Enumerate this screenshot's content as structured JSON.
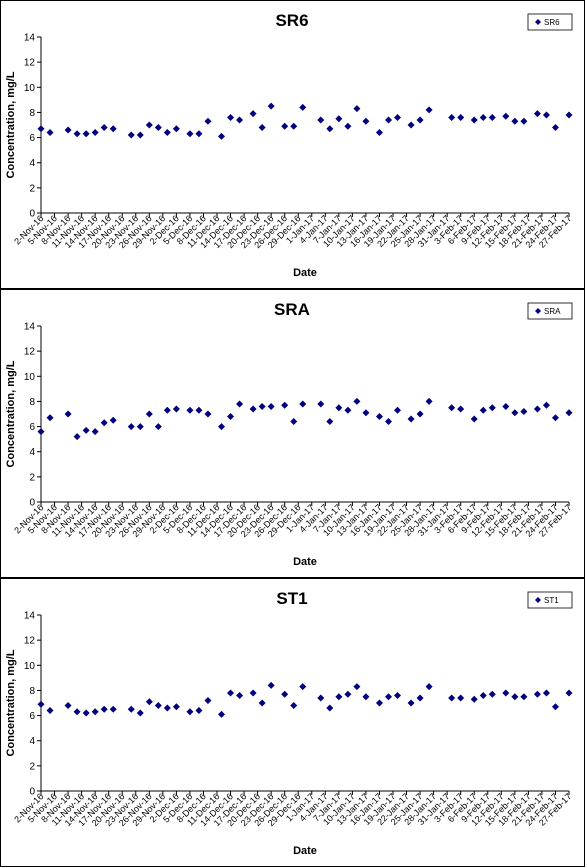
{
  "chart_data": [
    {
      "type": "scatter",
      "title": "SR6",
      "xlabel": "Date",
      "ylabel": "Concentration, mg/L",
      "legend": "upper right",
      "x": [
        "2-Nov-16",
        "4-Nov-16",
        "8-Nov-16",
        "10-Nov-16",
        "12-Nov-16",
        "14-Nov-16",
        "16-Nov-16",
        "18-Nov-16",
        "22-Nov-16",
        "24-Nov-16",
        "26-Nov-16",
        "28-Nov-16",
        "30-Nov-16",
        "2-Dec-16",
        "5-Dec-16",
        "7-Dec-16",
        "9-Dec-16",
        "12-Dec-16",
        "14-Dec-16",
        "16-Dec-16",
        "19-Dec-16",
        "21-Dec-16",
        "23-Dec-16",
        "26-Dec-16",
        "28-Dec-16",
        "30-Dec-16",
        "3-Jan-17",
        "5-Jan-17",
        "7-Jan-17",
        "9-Jan-17",
        "11-Jan-17",
        "13-Jan-17",
        "16-Jan-17",
        "18-Jan-17",
        "20-Jan-17",
        "23-Jan-17",
        "25-Jan-17",
        "27-Jan-17",
        "1-Feb-17",
        "3-Feb-17",
        "6-Feb-17",
        "8-Feb-17",
        "10-Feb-17",
        "13-Feb-17",
        "15-Feb-17",
        "17-Feb-17",
        "20-Feb-17",
        "22-Feb-17",
        "24-Feb-17",
        "27-Feb-17"
      ],
      "series": [
        {
          "name": "SR6",
          "color": "#000080",
          "values": [
            6.7,
            6.4,
            6.6,
            6.3,
            6.3,
            6.4,
            6.8,
            6.7,
            6.2,
            6.2,
            7.0,
            6.8,
            6.4,
            6.7,
            6.3,
            6.3,
            7.3,
            6.1,
            7.6,
            7.4,
            7.9,
            6.8,
            8.5,
            6.9,
            6.9,
            8.4,
            7.4,
            6.7,
            7.5,
            6.9,
            8.3,
            7.3,
            6.4,
            7.4,
            7.6,
            7.0,
            7.4,
            8.2,
            7.6,
            7.6,
            7.4,
            7.6,
            7.6,
            7.7,
            7.3,
            7.3,
            7.9,
            7.8,
            6.8,
            7.8
          ]
        }
      ],
      "xlim": [
        "2-Nov-16",
        "27-Feb-17"
      ],
      "xticks": [
        "2-Nov-16",
        "5-Nov-16",
        "8-Nov-16",
        "11-Nov-16",
        "14-Nov-16",
        "17-Nov-16",
        "20-Nov-16",
        "23-Nov-16",
        "26-Nov-16",
        "29-Nov-16",
        "2-Dec-16",
        "5-Dec-16",
        "8-Dec-16",
        "11-Dec-16",
        "14-Dec-16",
        "17-Dec-16",
        "20-Dec-16",
        "23-Dec-16",
        "26-Dec-16",
        "29-Dec-16",
        "1-Jan-17",
        "4-Jan-17",
        "7-Jan-17",
        "10-Jan-17",
        "13-Jan-17",
        "16-Jan-17",
        "19-Jan-17",
        "22-Jan-17",
        "25-Jan-17",
        "28-Jan-17",
        "31-Jan-17",
        "3-Feb-17",
        "6-Feb-17",
        "9-Feb-17",
        "12-Feb-17",
        "15-Feb-17",
        "18-Feb-17",
        "21-Feb-17",
        "24-Feb-17",
        "27-Feb-17"
      ],
      "ylim": [
        0,
        14
      ],
      "yticks": [
        0,
        2,
        4,
        6,
        8,
        10,
        12,
        14
      ]
    },
    {
      "type": "scatter",
      "title": "SRA",
      "xlabel": "Date",
      "ylabel": "Concentration, mg/L",
      "legend": "upper right",
      "x": [
        "2-Nov-16",
        "4-Nov-16",
        "8-Nov-16",
        "10-Nov-16",
        "12-Nov-16",
        "14-Nov-16",
        "16-Nov-16",
        "18-Nov-16",
        "22-Nov-16",
        "24-Nov-16",
        "26-Nov-16",
        "28-Nov-16",
        "30-Nov-16",
        "2-Dec-16",
        "5-Dec-16",
        "7-Dec-16",
        "9-Dec-16",
        "12-Dec-16",
        "14-Dec-16",
        "16-Dec-16",
        "19-Dec-16",
        "21-Dec-16",
        "23-Dec-16",
        "26-Dec-16",
        "28-Dec-16",
        "30-Dec-16",
        "3-Jan-17",
        "5-Jan-17",
        "7-Jan-17",
        "9-Jan-17",
        "11-Jan-17",
        "13-Jan-17",
        "16-Jan-17",
        "18-Jan-17",
        "20-Jan-17",
        "23-Jan-17",
        "25-Jan-17",
        "27-Jan-17",
        "1-Feb-17",
        "3-Feb-17",
        "6-Feb-17",
        "8-Feb-17",
        "10-Feb-17",
        "13-Feb-17",
        "15-Feb-17",
        "17-Feb-17",
        "20-Feb-17",
        "22-Feb-17",
        "24-Feb-17",
        "27-Feb-17"
      ],
      "series": [
        {
          "name": "SRA",
          "color": "#000080",
          "values": [
            5.6,
            6.7,
            7.0,
            5.2,
            5.7,
            5.6,
            6.3,
            6.5,
            6.0,
            6.0,
            7.0,
            6.0,
            7.3,
            7.4,
            7.3,
            7.3,
            7.0,
            6.0,
            6.8,
            7.8,
            7.4,
            7.6,
            7.6,
            7.7,
            6.4,
            7.8,
            7.8,
            6.4,
            7.5,
            7.3,
            8.0,
            7.1,
            6.8,
            6.4,
            7.3,
            6.6,
            7.0,
            8.0,
            7.5,
            7.4,
            6.6,
            7.3,
            7.5,
            7.6,
            7.1,
            7.2,
            7.4,
            7.7,
            6.7,
            7.1
          ]
        }
      ],
      "xlim": [
        "2-Nov-16",
        "27-Feb-17"
      ],
      "xticks": [
        "2-Nov-16",
        "5-Nov-16",
        "8-Nov-16",
        "11-Nov-16",
        "14-Nov-16",
        "17-Nov-16",
        "20-Nov-16",
        "23-Nov-16",
        "26-Nov-16",
        "29-Nov-16",
        "2-Dec-16",
        "5-Dec-16",
        "8-Dec-16",
        "11-Dec-16",
        "14-Dec-16",
        "17-Dec-16",
        "20-Dec-16",
        "23-Dec-16",
        "26-Dec-16",
        "29-Dec-16",
        "1-Jan-17",
        "4-Jan-17",
        "7-Jan-17",
        "10-Jan-17",
        "13-Jan-17",
        "16-Jan-17",
        "19-Jan-17",
        "22-Jan-17",
        "25-Jan-17",
        "28-Jan-17",
        "31-Jan-17",
        "3-Feb-17",
        "6-Feb-17",
        "9-Feb-17",
        "12-Feb-17",
        "15-Feb-17",
        "18-Feb-17",
        "21-Feb-17",
        "24-Feb-17",
        "27-Feb-17"
      ],
      "ylim": [
        0,
        14
      ],
      "yticks": [
        0,
        2,
        4,
        6,
        8,
        10,
        12,
        14
      ]
    },
    {
      "type": "scatter",
      "title": "ST1",
      "xlabel": "Date",
      "ylabel": "Concentration, mg/L",
      "legend": "upper right",
      "x": [
        "2-Nov-16",
        "4-Nov-16",
        "8-Nov-16",
        "10-Nov-16",
        "12-Nov-16",
        "14-Nov-16",
        "16-Nov-16",
        "18-Nov-16",
        "22-Nov-16",
        "24-Nov-16",
        "26-Nov-16",
        "28-Nov-16",
        "30-Nov-16",
        "2-Dec-16",
        "5-Dec-16",
        "7-Dec-16",
        "9-Dec-16",
        "12-Dec-16",
        "14-Dec-16",
        "16-Dec-16",
        "19-Dec-16",
        "21-Dec-16",
        "23-Dec-16",
        "26-Dec-16",
        "28-Dec-16",
        "30-Dec-16",
        "3-Jan-17",
        "5-Jan-17",
        "7-Jan-17",
        "9-Jan-17",
        "11-Jan-17",
        "13-Jan-17",
        "16-Jan-17",
        "18-Jan-17",
        "20-Jan-17",
        "23-Jan-17",
        "25-Jan-17",
        "27-Jan-17",
        "1-Feb-17",
        "3-Feb-17",
        "6-Feb-17",
        "8-Feb-17",
        "10-Feb-17",
        "13-Feb-17",
        "15-Feb-17",
        "17-Feb-17",
        "20-Feb-17",
        "22-Feb-17",
        "24-Feb-17",
        "27-Feb-17"
      ],
      "series": [
        {
          "name": "ST1",
          "color": "#000080",
          "values": [
            6.9,
            6.4,
            6.8,
            6.3,
            6.2,
            6.3,
            6.5,
            6.5,
            6.5,
            6.2,
            7.1,
            6.8,
            6.6,
            6.7,
            6.3,
            6.4,
            7.2,
            6.1,
            7.8,
            7.6,
            7.8,
            7.0,
            8.4,
            7.7,
            6.8,
            8.3,
            7.4,
            6.6,
            7.5,
            7.7,
            8.3,
            7.5,
            7.0,
            7.5,
            7.6,
            7.0,
            7.4,
            8.3,
            7.4,
            7.4,
            7.3,
            7.6,
            7.7,
            7.8,
            7.5,
            7.5,
            7.7,
            7.8,
            6.7,
            7.8
          ]
        }
      ],
      "xlim": [
        "2-Nov-16",
        "27-Feb-17"
      ],
      "xticks": [
        "2-Nov-16",
        "5-Nov-16",
        "8-Nov-16",
        "11-Nov-16",
        "14-Nov-16",
        "17-Nov-16",
        "20-Nov-16",
        "23-Nov-16",
        "26-Nov-16",
        "29-Nov-16",
        "2-Dec-16",
        "5-Dec-16",
        "8-Dec-16",
        "11-Dec-16",
        "14-Dec-16",
        "17-Dec-16",
        "20-Dec-16",
        "23-Dec-16",
        "26-Dec-16",
        "29-Dec-16",
        "1-Jan-17",
        "4-Jan-17",
        "7-Jan-17",
        "10-Jan-17",
        "13-Jan-17",
        "16-Jan-17",
        "19-Jan-17",
        "22-Jan-17",
        "25-Jan-17",
        "28-Jan-17",
        "31-Jan-17",
        "3-Feb-17",
        "6-Feb-17",
        "9-Feb-17",
        "12-Feb-17",
        "15-Feb-17",
        "18-Feb-17",
        "21-Feb-17",
        "24-Feb-17",
        "27-Feb-17"
      ],
      "ylim": [
        0,
        14
      ],
      "yticks": [
        0,
        2,
        4,
        6,
        8,
        10,
        12,
        14
      ]
    }
  ]
}
